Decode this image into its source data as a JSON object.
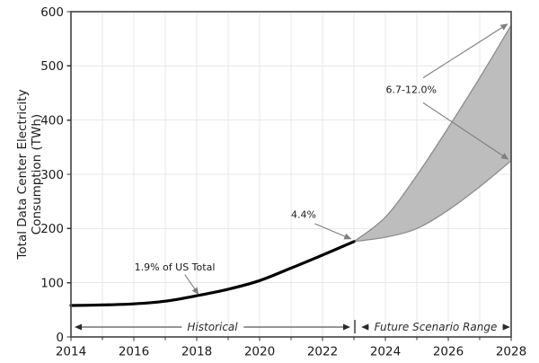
{
  "chart_data": {
    "type": "line",
    "title": "",
    "xlabel": "",
    "ylabel_lines": [
      "Total Data Center Electricity",
      "Consumption (TWh)"
    ],
    "xlim": [
      2014,
      2028
    ],
    "ylim": [
      0,
      600
    ],
    "x_major_ticks": [
      2014,
      2016,
      2018,
      2020,
      2022,
      2024,
      2026,
      2028
    ],
    "x_minor_ticks": [
      2015,
      2017,
      2019,
      2021,
      2023,
      2025,
      2027
    ],
    "y_ticks": [
      0,
      100,
      200,
      300,
      400,
      500,
      600
    ],
    "grid": {
      "vertical_every_year": true,
      "horizontal_every_100": true
    },
    "legend": "none",
    "series": [
      {
        "name": "Historical",
        "kind": "line",
        "color": "#000000",
        "x": [
          2014,
          2015,
          2016,
          2017,
          2018,
          2019,
          2020,
          2021,
          2022,
          2023
        ],
        "values": [
          58,
          59,
          61,
          66,
          76,
          88,
          104,
          127,
          151,
          176
        ]
      },
      {
        "name": "Future Scenario Range",
        "kind": "band",
        "fill": "#bdbdbd",
        "edge": "#8c8c8c",
        "x": [
          2023,
          2024,
          2025,
          2026,
          2027,
          2028
        ],
        "low": [
          176,
          184,
          200,
          234,
          277,
          325
        ],
        "high": [
          176,
          221,
          298,
          386,
          478,
          575
        ]
      }
    ],
    "annotations": [
      {
        "id": "share-2018",
        "text": "1.9% of US Total",
        "text_xy": [
          2017.3,
          129
        ],
        "arrows": [
          {
            "from": [
              2017.62,
              115
            ],
            "to": [
              2018.05,
              79
            ]
          }
        ]
      },
      {
        "id": "share-2023",
        "text": "4.4%",
        "text_xy": [
          2021.4,
          226
        ],
        "arrows": [
          {
            "from": [
              2021.75,
              209
            ],
            "to": [
              2022.9,
              181
            ]
          }
        ]
      },
      {
        "id": "share-2028",
        "text": "6.7-12.0%",
        "text_xy": [
          2024.82,
          456
        ],
        "arrows": [
          {
            "from": [
              2025.2,
              478
            ],
            "to": [
              2027.88,
              577
            ]
          },
          {
            "from": [
              2025.2,
              432
            ],
            "to": [
              2027.9,
              328
            ]
          }
        ]
      }
    ],
    "span_labels": [
      {
        "id": "historical-span",
        "text": "Historical",
        "from_year": 2014.14,
        "to_year": 2022.86
      },
      {
        "id": "future-span",
        "text": "Future Scenario Range",
        "from_year": 2023.26,
        "to_year": 2027.94
      }
    ],
    "span_divider_year": 2023.03,
    "colors": {
      "background": "#ffffff",
      "grid": "#e7e7e7",
      "spine": "#4d4d4d",
      "tick": "#333333",
      "text": "#1a1a1a",
      "callout_arrow": "#7f7f7f",
      "span_arrow": "#2b2b2b"
    }
  }
}
